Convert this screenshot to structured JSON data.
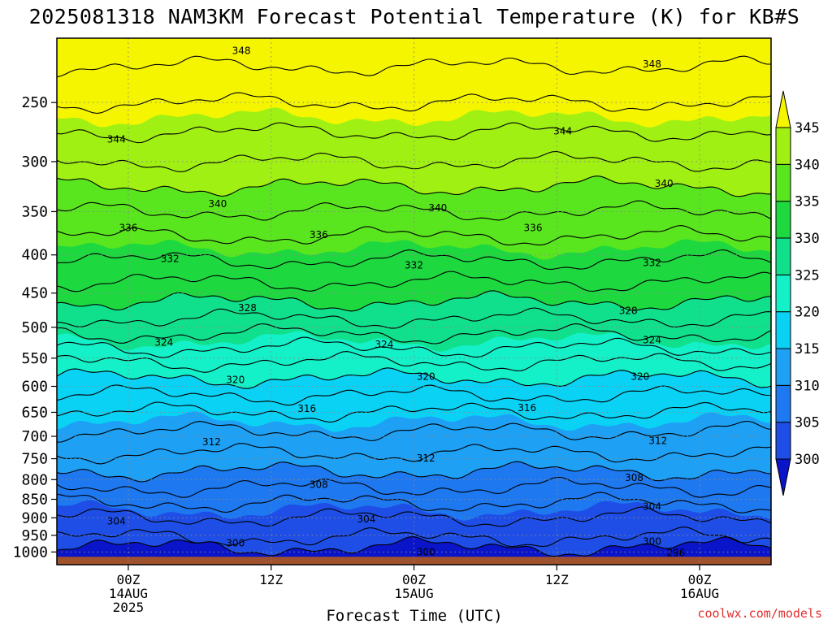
{
  "title": "2025081318 NAM3KM Forecast Potential Temperature (K) for KB#S",
  "credit": "coolwx.com/models",
  "colors": {
    "ground": "#a0522d",
    "contour_line": "#000000",
    "grid_line": "#888888"
  },
  "chart_data": {
    "type": "heatmap",
    "title": "2025081318 NAM3KM Forecast Potential Temperature (K) for KB#S",
    "xlabel": "Forecast Time (UTC)",
    "ylabel": "",
    "y_scale": "log",
    "y_reversed": true,
    "x_hours_range": [
      -6,
      54
    ],
    "y_range_hpa": [
      205,
      1040
    ],
    "pressure_ticks": [
      250,
      300,
      350,
      400,
      450,
      500,
      550,
      600,
      650,
      700,
      750,
      800,
      850,
      900,
      950,
      1000
    ],
    "time_ticks": [
      {
        "hour": 0,
        "lines": [
          "00Z",
          "14AUG",
          "2025"
        ]
      },
      {
        "hour": 12,
        "lines": [
          "12Z"
        ]
      },
      {
        "hour": 24,
        "lines": [
          "00Z",
          "15AUG"
        ]
      },
      {
        "hour": 36,
        "lines": [
          "12Z"
        ]
      },
      {
        "hour": 48,
        "lines": [
          "00Z",
          "16AUG"
        ]
      }
    ],
    "grid": true,
    "color_scale": {
      "levels": [
        300,
        305,
        310,
        315,
        320,
        325,
        330,
        335,
        340,
        345
      ],
      "colors": [
        "#0a14c8",
        "#1e4ee6",
        "#1e78f0",
        "#1ea0f5",
        "#0ad2f5",
        "#14f0c8",
        "#10e08c",
        "#1ed840",
        "#5ae61e",
        "#a0f014",
        "#f5f500"
      ],
      "extend": "both"
    },
    "profile_hpa": [
      1000,
      950,
      900,
      850,
      800,
      750,
      700,
      650,
      600,
      550,
      500,
      450,
      400,
      350,
      300,
      250,
      200
    ],
    "profile_theta_K": [
      299,
      302.5,
      304,
      306.5,
      309,
      311.5,
      313.5,
      316,
      319,
      322.5,
      327,
      331,
      334.5,
      338,
      342,
      346,
      350
    ],
    "contour_levels_K": [
      296,
      298,
      300,
      302,
      304,
      306,
      308,
      310,
      312,
      314,
      316,
      318,
      320,
      322,
      324,
      326,
      328,
      330,
      332,
      334,
      336,
      338,
      340,
      342,
      344,
      346,
      348
    ],
    "contour_labels": [
      {
        "value": 348,
        "hour": 9.5,
        "hpa": 213
      },
      {
        "value": 348,
        "hour": 44,
        "hpa": 222
      },
      {
        "value": 344,
        "hour": -1,
        "hpa": 280
      },
      {
        "value": 344,
        "hour": 36.5,
        "hpa": 273
      },
      {
        "value": 340,
        "hour": 45,
        "hpa": 321
      },
      {
        "value": 340,
        "hour": 7.5,
        "hpa": 342
      },
      {
        "value": 340,
        "hour": 26,
        "hpa": 346
      },
      {
        "value": 336,
        "hour": 0,
        "hpa": 368
      },
      {
        "value": 336,
        "hour": 16,
        "hpa": 376
      },
      {
        "value": 336,
        "hour": 34,
        "hpa": 368
      },
      {
        "value": 332,
        "hour": 3.5,
        "hpa": 405
      },
      {
        "value": 332,
        "hour": 24,
        "hpa": 413
      },
      {
        "value": 332,
        "hour": 44,
        "hpa": 410
      },
      {
        "value": 328,
        "hour": 10,
        "hpa": 471
      },
      {
        "value": 328,
        "hour": 42,
        "hpa": 475
      },
      {
        "value": 324,
        "hour": 3,
        "hpa": 524
      },
      {
        "value": 324,
        "hour": 21.5,
        "hpa": 527
      },
      {
        "value": 324,
        "hour": 44,
        "hpa": 520
      },
      {
        "value": 320,
        "hour": 9,
        "hpa": 588
      },
      {
        "value": 320,
        "hour": 25,
        "hpa": 582
      },
      {
        "value": 320,
        "hour": 43,
        "hpa": 582
      },
      {
        "value": 316,
        "hour": 15,
        "hpa": 643
      },
      {
        "value": 316,
        "hour": 33.5,
        "hpa": 641
      },
      {
        "value": 312,
        "hour": 7,
        "hpa": 712
      },
      {
        "value": 312,
        "hour": 25,
        "hpa": 749
      },
      {
        "value": 312,
        "hour": 44.5,
        "hpa": 710
      },
      {
        "value": 308,
        "hour": 16,
        "hpa": 812
      },
      {
        "value": 308,
        "hour": 42.5,
        "hpa": 795
      },
      {
        "value": 304,
        "hour": 44,
        "hpa": 869
      },
      {
        "value": 304,
        "hour": -1,
        "hpa": 910
      },
      {
        "value": 304,
        "hour": 20,
        "hpa": 904
      },
      {
        "value": 300,
        "hour": 9,
        "hpa": 973
      },
      {
        "value": 300,
        "hour": 44,
        "hpa": 968
      },
      {
        "value": 300,
        "hour": 25,
        "hpa": 1000
      },
      {
        "value": 296,
        "hour": 46,
        "hpa": 1003
      }
    ]
  }
}
